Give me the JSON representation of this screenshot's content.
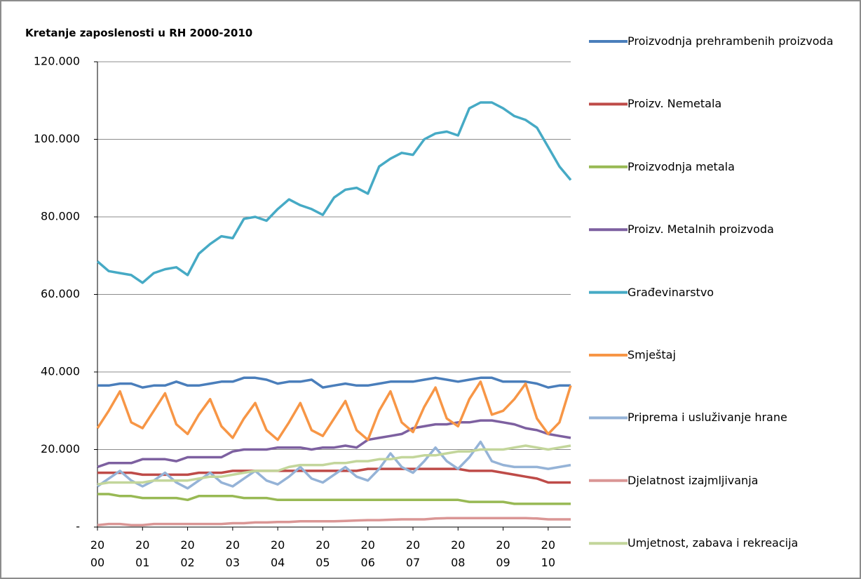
{
  "chart_data": {
    "type": "line",
    "title": "Kretanje zaposlenosti u RH 2000-2010",
    "x": [
      2000,
      2000.25,
      2000.5,
      2000.75,
      2001,
      2001.25,
      2001.5,
      2001.75,
      2002,
      2002.25,
      2002.5,
      2002.75,
      2003,
      2003.25,
      2003.5,
      2003.75,
      2004,
      2004.25,
      2004.5,
      2004.75,
      2005,
      2005.25,
      2005.5,
      2005.75,
      2006,
      2006.25,
      2006.5,
      2006.75,
      2007,
      2007.25,
      2007.5,
      2007.75,
      2008,
      2008.25,
      2008.5,
      2008.75,
      2009,
      2009.25,
      2009.5,
      2009.75,
      2010,
      2010.25,
      2010.5
    ],
    "xlim": [
      2000,
      2010.5
    ],
    "xticks": [
      {
        "value": 2000,
        "label": "20\n00"
      },
      {
        "value": 2001,
        "label": "20\n01"
      },
      {
        "value": 2002,
        "label": "20\n02"
      },
      {
        "value": 2003,
        "label": "20\n03"
      },
      {
        "value": 2004,
        "label": "20\n04"
      },
      {
        "value": 2005,
        "label": "20\n05"
      },
      {
        "value": 2006,
        "label": "20\n06"
      },
      {
        "value": 2007,
        "label": "20\n07"
      },
      {
        "value": 2008,
        "label": "20\n08"
      },
      {
        "value": 2009,
        "label": "20\n09"
      },
      {
        "value": 2010,
        "label": "20\n10"
      }
    ],
    "ylim": [
      0,
      120000
    ],
    "yticks": [
      {
        "value": 0,
        "label": "-"
      },
      {
        "value": 20000,
        "label": "20.000"
      },
      {
        "value": 40000,
        "label": "40.000"
      },
      {
        "value": 60000,
        "label": "60.000"
      },
      {
        "value": 80000,
        "label": "80.000"
      },
      {
        "value": 100000,
        "label": "100.000"
      },
      {
        "value": 120000,
        "label": "120.000"
      }
    ],
    "grid": true,
    "legend": "right",
    "series": [
      {
        "name": "Proizvodnja prehrambenih proizvoda",
        "color": "#4a7ebb",
        "values": [
          36500,
          36500,
          37000,
          37000,
          36000,
          36500,
          36500,
          37500,
          36500,
          36500,
          37000,
          37500,
          37500,
          38500,
          38500,
          38000,
          37000,
          37500,
          37500,
          38000,
          36000,
          36500,
          37000,
          36500,
          36500,
          37000,
          37500,
          37500,
          37500,
          38000,
          38500,
          38000,
          37500,
          38000,
          38500,
          38500,
          37500,
          37500,
          37500,
          37000,
          36000,
          36500,
          36500
        ]
      },
      {
        "name": "Proizv. Nemetala",
        "color": "#be4b48",
        "values": [
          14000,
          14000,
          14000,
          14000,
          13500,
          13500,
          13500,
          13500,
          13500,
          14000,
          14000,
          14000,
          14500,
          14500,
          14500,
          14500,
          14500,
          14500,
          14500,
          14500,
          14500,
          14500,
          14500,
          14500,
          15000,
          15000,
          15000,
          15000,
          15000,
          15000,
          15000,
          15000,
          15000,
          14500,
          14500,
          14500,
          14000,
          13500,
          13000,
          12500,
          11500,
          11500,
          11500
        ]
      },
      {
        "name": "Proizvodnja metala",
        "color": "#98b954",
        "values": [
          8500,
          8500,
          8000,
          8000,
          7500,
          7500,
          7500,
          7500,
          7000,
          8000,
          8000,
          8000,
          8000,
          7500,
          7500,
          7500,
          7000,
          7000,
          7000,
          7000,
          7000,
          7000,
          7000,
          7000,
          7000,
          7000,
          7000,
          7000,
          7000,
          7000,
          7000,
          7000,
          7000,
          6500,
          6500,
          6500,
          6500,
          6000,
          6000,
          6000,
          6000,
          6000,
          6000
        ]
      },
      {
        "name": "Proizv. Metalnih proizvoda",
        "color": "#7d60a0",
        "values": [
          15500,
          16500,
          16500,
          16500,
          17500,
          17500,
          17500,
          17000,
          18000,
          18000,
          18000,
          18000,
          19500,
          20000,
          20000,
          20000,
          20500,
          20500,
          20500,
          20000,
          20500,
          20500,
          21000,
          20500,
          22500,
          23000,
          23500,
          24000,
          25500,
          26000,
          26500,
          26500,
          27000,
          27000,
          27500,
          27500,
          27000,
          26500,
          25500,
          25000,
          24000,
          23500,
          23000
        ]
      },
      {
        "name": "Građevinarstvo",
        "color": "#46aac5",
        "values": [
          68500,
          66000,
          65500,
          65000,
          63000,
          65500,
          66500,
          67000,
          65000,
          70500,
          73000,
          75000,
          74500,
          79500,
          80000,
          79000,
          82000,
          84500,
          83000,
          82000,
          80500,
          85000,
          87000,
          87500,
          86000,
          93000,
          95000,
          96500,
          96000,
          100000,
          101500,
          102000,
          101000,
          108000,
          109500,
          109500,
          108000,
          106000,
          105000,
          103000,
          98000,
          93000,
          89500
        ]
      },
      {
        "name": "Smještaj",
        "color": "#f79646",
        "values": [
          25500,
          30000,
          35000,
          27000,
          25500,
          30000,
          34500,
          26500,
          24000,
          29000,
          33000,
          26000,
          23000,
          28000,
          32000,
          25000,
          22500,
          27000,
          32000,
          25000,
          23500,
          28000,
          32500,
          25000,
          22500,
          30000,
          35000,
          27000,
          24500,
          31000,
          36000,
          28000,
          26000,
          33000,
          37500,
          29000,
          30000,
          33000,
          37000,
          28000,
          24000,
          27000,
          36500
        ]
      },
      {
        "name": "Priprema i usluživanje hrane",
        "color": "#95b3d7",
        "values": [
          10500,
          12500,
          14500,
          12000,
          10500,
          12000,
          14000,
          11500,
          10000,
          12000,
          14000,
          11500,
          10500,
          12500,
          14500,
          12000,
          11000,
          13000,
          15500,
          12500,
          11500,
          13500,
          15500,
          13000,
          12000,
          15000,
          19000,
          15500,
          14000,
          17000,
          20500,
          17000,
          15000,
          18000,
          22000,
          17000,
          16000,
          15500,
          15500,
          15500,
          15000,
          15500,
          16000
        ]
      },
      {
        "name": "Djelatnost izajmljivanja",
        "color": "#da9695",
        "values": [
          500,
          800,
          800,
          500,
          500,
          800,
          800,
          800,
          800,
          800,
          800,
          800,
          1000,
          1000,
          1200,
          1200,
          1300,
          1300,
          1500,
          1500,
          1500,
          1500,
          1600,
          1700,
          1800,
          1800,
          1900,
          2000,
          2000,
          2000,
          2200,
          2300,
          2300,
          2300,
          2300,
          2300,
          2300,
          2300,
          2300,
          2200,
          2000,
          2000,
          2000
        ]
      },
      {
        "name": "Umjetnost, zabava i rekreacija",
        "color": "#c3d69b",
        "values": [
          11000,
          11500,
          11500,
          11500,
          11500,
          12000,
          12000,
          12000,
          12000,
          12500,
          13000,
          13000,
          13500,
          14000,
          14500,
          14500,
          14500,
          15500,
          16000,
          16000,
          16000,
          16500,
          16500,
          17000,
          17000,
          17500,
          17500,
          18000,
          18000,
          18500,
          18500,
          19000,
          19500,
          19500,
          20000,
          20000,
          20000,
          20500,
          21000,
          20500,
          20000,
          20500,
          21000
        ]
      }
    ]
  }
}
